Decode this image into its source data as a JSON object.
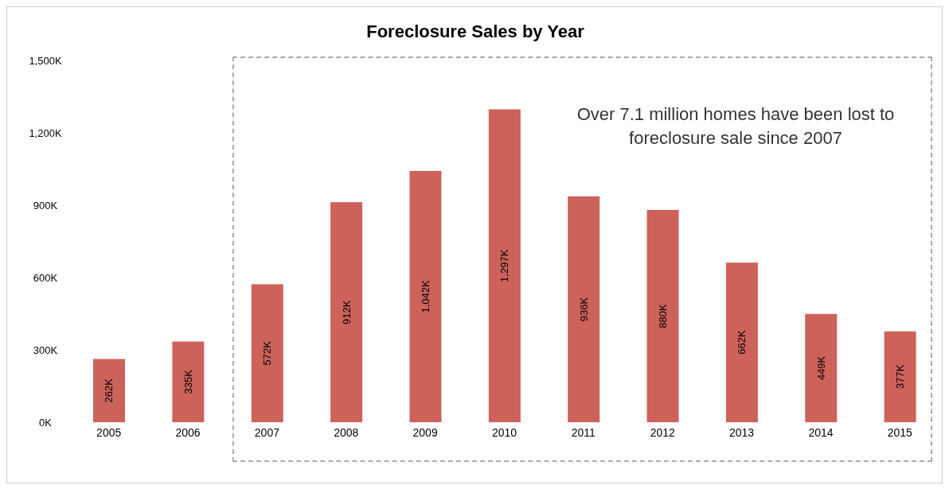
{
  "chart_data": {
    "type": "bar",
    "title": "Foreclosure Sales by Year",
    "categories": [
      "2005",
      "2006",
      "2007",
      "2008",
      "2009",
      "2010",
      "2011",
      "2012",
      "2013",
      "2014",
      "2015"
    ],
    "values": [
      262,
      335,
      572,
      912,
      1042,
      1297,
      936,
      880,
      662,
      449,
      377
    ],
    "value_labels": [
      "262K",
      "335K",
      "572K",
      "912K",
      "1,042K",
      "1,297K",
      "936K",
      "880K",
      "662K",
      "449K",
      "377K"
    ],
    "color": "#cd625a",
    "ylim": [
      0,
      1500
    ],
    "yticks": [
      {
        "value": 0,
        "label": "0K"
      },
      {
        "value": 300,
        "label": "300K"
      },
      {
        "value": 600,
        "label": "600K"
      },
      {
        "value": 900,
        "label": "900K"
      },
      {
        "value": 1200,
        "label": "1,200K"
      },
      {
        "value": 1500,
        "label": "1,500K"
      }
    ],
    "grid": false,
    "annotations": [
      "Over 7.1 million homes have been lost to foreclosure sale since 2007"
    ]
  }
}
